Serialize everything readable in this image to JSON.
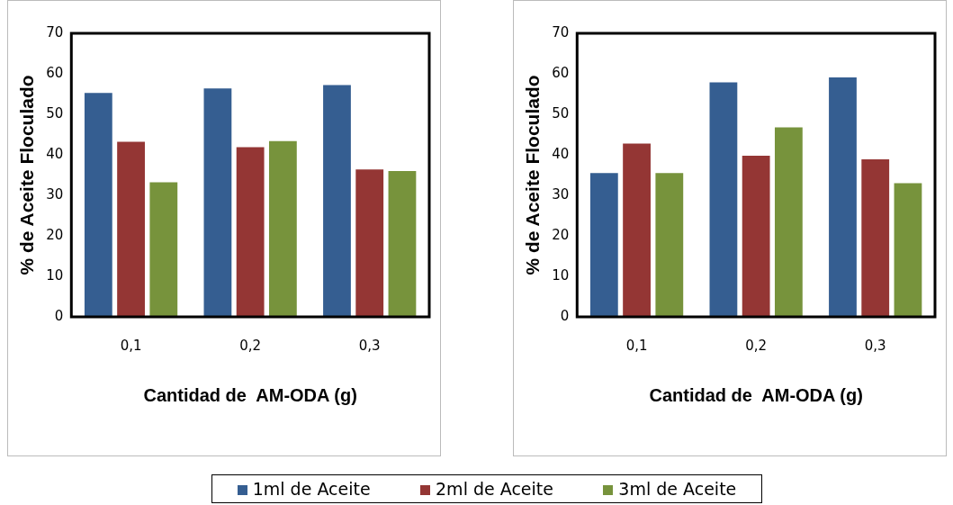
{
  "chart_data": [
    {
      "type": "bar",
      "xlabel": "Cantidad de  AM-ODA (g)",
      "ylabel": "% de Aceite Floculado",
      "categories": [
        "0,1",
        "0,2",
        "0,3"
      ],
      "ylim": [
        0,
        70
      ],
      "yticks": [
        0,
        10,
        20,
        30,
        40,
        50,
        60,
        70
      ],
      "grid": false,
      "legend": "bottom",
      "series": [
        {
          "name": "1ml de Aceite",
          "color": "#355e91",
          "values": [
            55.3,
            56.4,
            57.2
          ]
        },
        {
          "name": "2ml de Aceite",
          "color": "#943634",
          "values": [
            43.2,
            41.9,
            36.4
          ]
        },
        {
          "name": "3ml de Aceite",
          "color": "#77933c",
          "values": [
            33.2,
            43.4,
            36.0
          ]
        }
      ]
    },
    {
      "type": "bar",
      "xlabel": "Cantidad de  AM-ODA (g)",
      "ylabel": "% de Aceite Floculado",
      "categories": [
        "0,1",
        "0,2",
        "0,3"
      ],
      "ylim": [
        0,
        70
      ],
      "yticks": [
        0,
        10,
        20,
        30,
        40,
        50,
        60,
        70
      ],
      "grid": false,
      "series": [
        {
          "color": "#355e91",
          "values": [
            35.5,
            57.9,
            59.1
          ]
        },
        {
          "color": "#943634",
          "values": [
            42.8,
            39.8,
            38.9
          ]
        },
        {
          "color": "#77933c",
          "values": [
            35.5,
            46.8,
            33.0
          ]
        }
      ]
    }
  ]
}
